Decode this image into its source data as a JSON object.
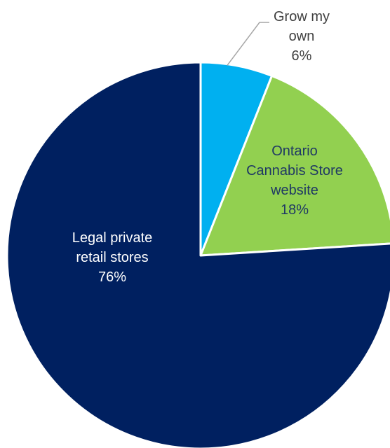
{
  "chart_data": {
    "type": "pie",
    "title": "",
    "slices": [
      {
        "label_lines": [
          "Grow my",
          "own"
        ],
        "value_label": "6%",
        "value": 6,
        "color": "#00B0F0",
        "label_color": "#404040",
        "label_position": "outside"
      },
      {
        "label_lines": [
          "Ontario",
          "Cannabis Store",
          "website"
        ],
        "value_label": "18%",
        "value": 18,
        "color": "#92D050",
        "label_color": "#1F3864",
        "label_position": "inside"
      },
      {
        "label_lines": [
          "Legal private",
          "retail stores"
        ],
        "value_label": "76%",
        "value": 76,
        "color": "#002060",
        "label_color": "#ffffff",
        "label_position": "inside"
      }
    ]
  }
}
